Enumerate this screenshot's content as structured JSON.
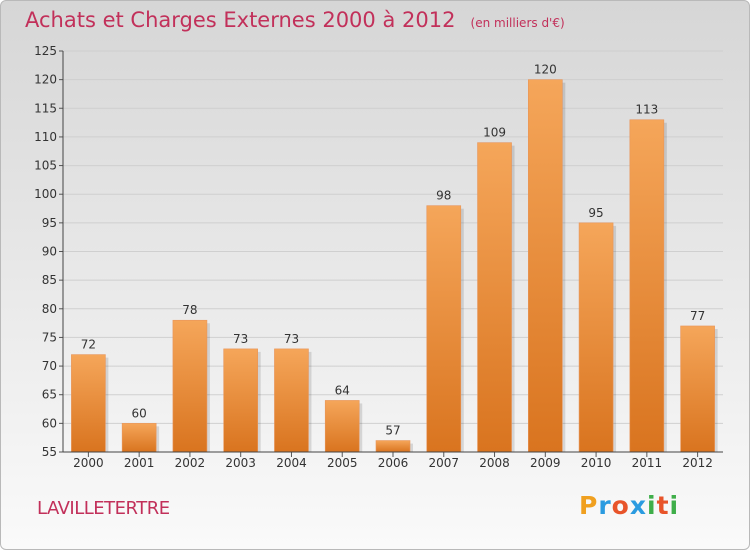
{
  "header": {
    "title": "Achats et Charges Externes 2000 à 2012",
    "unit": "(en milliers d'€)"
  },
  "footer": {
    "commune": "LAVILLETERTRE"
  },
  "logo": {
    "letters": [
      "P",
      "r",
      "o",
      "x",
      "i",
      "t",
      "i"
    ],
    "colors": [
      "#f0a020",
      "#2b9be0",
      "#e8542a",
      "#2b9be0",
      "#3fae49",
      "#e8542a",
      "#3fae49"
    ]
  },
  "colors": {
    "bar_light": "#f5a65a",
    "bar_dark": "#d9741f",
    "title": "#c2305a"
  },
  "chart_data": {
    "type": "bar",
    "title": "Achats et Charges Externes 2000 à 2012",
    "subtitle": "(en milliers d'€)",
    "categories": [
      "2000",
      "2001",
      "2002",
      "2003",
      "2004",
      "2005",
      "2006",
      "2007",
      "2008",
      "2009",
      "2010",
      "2011",
      "2012"
    ],
    "values": [
      72,
      60,
      78,
      73,
      73,
      64,
      57,
      98,
      109,
      120,
      95,
      113,
      77
    ],
    "ylim": [
      55,
      125
    ],
    "yticks": [
      55,
      60,
      65,
      70,
      75,
      80,
      85,
      90,
      95,
      100,
      105,
      110,
      115,
      120,
      125
    ],
    "grid": true,
    "xlabel": "",
    "ylabel": ""
  }
}
